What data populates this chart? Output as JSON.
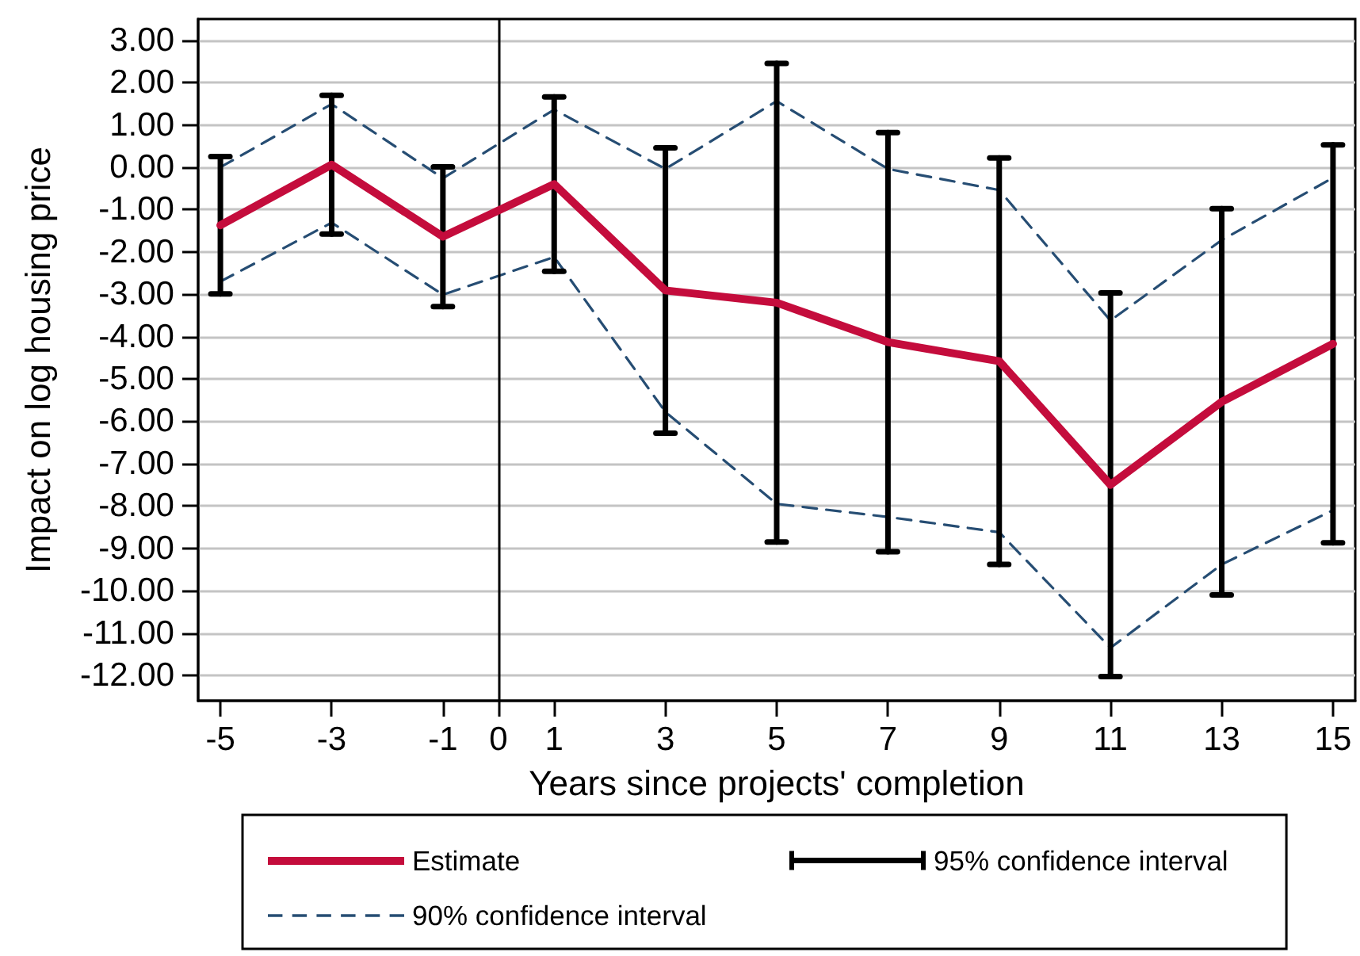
{
  "chart_data": {
    "type": "line",
    "xlabel": "Years since projects' completion",
    "ylabel": "Impact on log housing price",
    "x": [
      -5,
      -3,
      -1,
      1,
      3,
      5,
      7,
      9,
      11,
      13,
      15
    ],
    "series": [
      {
        "name": "Estimate",
        "color": "#c40c3c",
        "values": [
          -1.37,
          0.06,
          -1.64,
          -0.4,
          -2.91,
          -3.2,
          -4.13,
          -4.58,
          -7.5,
          -5.54,
          -4.17
        ],
        "errors": [
          1.62,
          1.64,
          1.65,
          2.06,
          3.37,
          5.65,
          4.95,
          4.8,
          4.53,
          4.56,
          4.7
        ]
      },
      {
        "name": "90% confidence interval",
        "color": "#264d73",
        "line_style": "dashed",
        "values": [
          0.0,
          1.49,
          -0.26,
          1.36,
          -0.04,
          1.56,
          -0.04,
          -0.54,
          -3.62,
          -1.72,
          -0.25
        ]
      },
      {
        "color": "#264d73",
        "line_style": "dashed",
        "values": [
          -2.7,
          -1.31,
          -3.01,
          -2.12,
          -5.78,
          -7.95,
          -8.26,
          -8.62,
          -11.35,
          -9.38,
          -8.1
        ]
      }
    ],
    "annotations": [
      "95% confidence interval"
    ],
    "xlim": [
      -5.4,
      15.4
    ],
    "xticks": [
      -5,
      -3,
      -1,
      0,
      1,
      3,
      5,
      7,
      9,
      11,
      13,
      15
    ],
    "ylim": [
      -12.6,
      3.5
    ],
    "yticks": [
      {
        "value": -12,
        "label": "-12.00"
      },
      {
        "value": -11,
        "label": "-11.00"
      },
      {
        "value": -10,
        "label": "-10.00"
      },
      {
        "value": -9,
        "label": "-9.00"
      },
      {
        "value": -8,
        "label": "-8.00"
      },
      {
        "value": -7,
        "label": "-7.00"
      },
      {
        "value": -6,
        "label": "-6.00"
      },
      {
        "value": -5,
        "label": "-5.00"
      },
      {
        "value": -4,
        "label": "-4.00"
      },
      {
        "value": -3,
        "label": "-3.00"
      },
      {
        "value": -2,
        "label": "-2.00"
      },
      {
        "value": -1,
        "label": "-1.00"
      },
      {
        "value": 0,
        "label": "0.00"
      },
      {
        "value": 1,
        "label": "1.00"
      },
      {
        "value": 2,
        "label": "2.00"
      },
      {
        "value": 3,
        "label": "3.00"
      }
    ],
    "ref_lines": [
      {
        "axis": "x",
        "value": 0,
        "color": "#000000"
      }
    ],
    "grid": "y",
    "legend": "bottom",
    "marker": "none",
    "line_style": "solid"
  }
}
